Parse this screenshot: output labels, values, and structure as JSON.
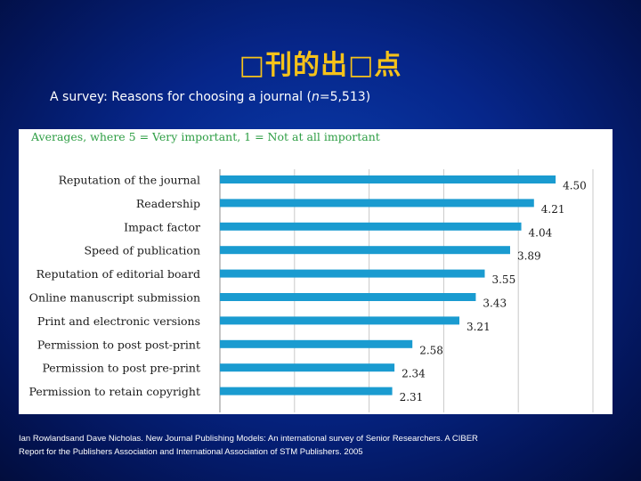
{
  "slide": {
    "title": "□刊的出□点",
    "subtitle_prefix": "A survey: Reasons for choosing a journal (",
    "subtitle_n_symbol": "n",
    "subtitle_suffix": "=5,513)",
    "citation_line1": "Ian Rowlandsand Dave Nicholas. New Journal Publishing Models: An international survey of Senior Researchers. A CIBER",
    "citation_line2": "Report for the Publishers Association and International Association of STM Publishers. 2005"
  },
  "colors": {
    "background": "#06268a",
    "title": "#f5c21a",
    "bar": "#1a9bd0",
    "chart_header": "#2e9e44"
  },
  "chart_data": {
    "type": "bar",
    "orientation": "horizontal",
    "title": "Averages, where 5 = Very important, 1 = Not at all important",
    "categories": [
      "Reputation of the journal",
      "Readership",
      "Impact factor",
      "Speed of publication",
      "Reputation of editorial board",
      "Online manuscript submission",
      "Print and electronic versions",
      "Permission to post post-print",
      "Permission to post pre-print",
      "Permission to retain copyright"
    ],
    "values": [
      4.5,
      4.21,
      4.04,
      3.89,
      3.55,
      3.43,
      3.21,
      2.58,
      2.34,
      2.31
    ],
    "value_labels": [
      "4.50",
      "4.21",
      "4.04",
      "3.89",
      "3.55",
      "3.43",
      "3.21",
      "2.58",
      "2.34",
      "2.31"
    ],
    "xlim": [
      1,
      5
    ],
    "grid": true,
    "legend": "none"
  }
}
